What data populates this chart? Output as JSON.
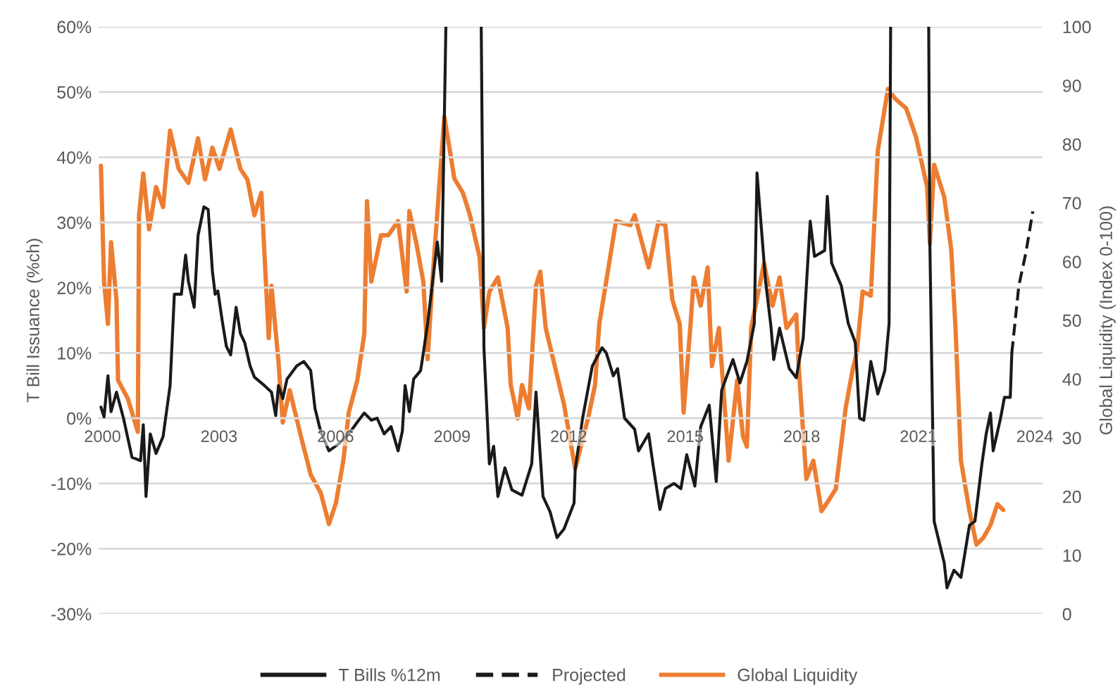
{
  "chart_data": {
    "type": "line",
    "ylabel": "T Bill Issuance (%ch)",
    "y2label": "Global Liquidity (Index 0-100)",
    "xlim": [
      1999.9,
      2024.2
    ],
    "xticks": [
      2000,
      2003,
      2006,
      2009,
      2012,
      2015,
      2018,
      2021,
      2024
    ],
    "ylim": [
      -30,
      60
    ],
    "yticks": [
      {
        "value": -30,
        "label": "-30%"
      },
      {
        "value": -20,
        "label": "-20%"
      },
      {
        "value": -10,
        "label": "-10%"
      },
      {
        "value": 0,
        "label": "0%"
      },
      {
        "value": 10,
        "label": "10%"
      },
      {
        "value": 20,
        "label": "20%"
      },
      {
        "value": 30,
        "label": "30%"
      },
      {
        "value": 40,
        "label": "40%"
      },
      {
        "value": 50,
        "label": "50%"
      },
      {
        "value": 60,
        "label": "60%"
      }
    ],
    "y2lim": [
      0,
      100
    ],
    "y2ticks": [
      0,
      10,
      20,
      30,
      40,
      50,
      60,
      70,
      80,
      90,
      100
    ],
    "grid": "y",
    "legend": "bottom",
    "marker": "none",
    "series": [
      {
        "name": "T Bills %12m",
        "color": "#1a1a1a",
        "line_style": "solid",
        "x": [
          1999.96,
          2000.04,
          2000.14,
          2000.22,
          2000.36,
          2000.54,
          2000.76,
          2000.98,
          2001.05,
          2001.12,
          2001.23,
          2001.38,
          2001.56,
          2001.74,
          2001.85,
          2002.03,
          2002.14,
          2002.21,
          2002.36,
          2002.46,
          2002.61,
          2002.72,
          2002.83,
          2002.9,
          2002.97,
          2003.08,
          2003.19,
          2003.3,
          2003.44,
          2003.55,
          2003.66,
          2003.8,
          2003.91,
          2004.17,
          2004.35,
          2004.46,
          2004.53,
          2004.64,
          2004.75,
          2005.0,
          2005.18,
          2005.36,
          2005.47,
          2005.62,
          2005.83,
          2006.09,
          2006.38,
          2006.56,
          2006.74,
          2006.92,
          2007.07,
          2007.25,
          2007.43,
          2007.61,
          2007.72,
          2007.79,
          2007.9,
          2008.01,
          2008.19,
          2008.26,
          2008.37,
          2008.62,
          2008.73,
          2008.84,
          2009.3,
          2009.75,
          2009.82,
          2009.96,
          2010.07,
          2010.18,
          2010.36,
          2010.54,
          2010.8,
          2011.05,
          2011.16,
          2011.34,
          2011.52,
          2011.7,
          2011.88,
          2012.14,
          2012.17,
          2012.36,
          2012.61,
          2012.86,
          2012.97,
          2013.15,
          2013.26,
          2013.44,
          2013.7,
          2013.8,
          2014.06,
          2014.17,
          2014.35,
          2014.49,
          2014.71,
          2014.89,
          2015.04,
          2015.25,
          2015.4,
          2015.62,
          2015.8,
          2015.94,
          2016.23,
          2016.41,
          2016.59,
          2016.78,
          2016.85,
          2017.07,
          2017.21,
          2017.28,
          2017.43,
          2017.68,
          2017.86,
          2018.04,
          2018.22,
          2018.33,
          2018.59,
          2018.66,
          2018.77,
          2019.02,
          2019.2,
          2019.38,
          2019.49,
          2019.6,
          2019.78,
          2019.96,
          2020.14,
          2020.25,
          2020.29,
          2020.8,
          2021.27,
          2021.3,
          2021.41,
          2021.67,
          2021.74,
          2021.92,
          2022.1,
          2022.32,
          2022.46,
          2022.64,
          2022.75,
          2022.86,
          2022.93,
          2023.12,
          2023.22,
          2023.37,
          2023.41
        ],
        "values": [
          1.7,
          0.2,
          6.5,
          1,
          4,
          0,
          -6,
          -6.5,
          -1,
          -12,
          -2.4,
          -5.4,
          -2.8,
          5,
          19,
          19,
          25,
          21,
          17,
          28,
          32.4,
          32,
          22.5,
          19,
          19.5,
          15,
          11,
          9.7,
          17,
          13,
          11.6,
          8,
          6.3,
          5,
          4,
          0.4,
          5,
          3,
          6,
          8,
          8.7,
          7.3,
          1.5,
          -2.1,
          -5,
          -3.9,
          -2.1,
          -0.6,
          0.8,
          -0.3,
          0,
          -2.4,
          -1.3,
          -5,
          -2,
          5,
          1,
          6,
          7.3,
          10,
          14.5,
          27,
          21,
          60,
          null,
          60,
          10.8,
          -7,
          -4.3,
          -12,
          -7.6,
          -11,
          -11.8,
          -7,
          4,
          -12,
          -14.3,
          -18.3,
          -17,
          -13,
          -7.8,
          0,
          8,
          10.8,
          10,
          6.5,
          7.6,
          0,
          -1.7,
          -5,
          -2.4,
          -7,
          -14,
          -10.8,
          -10,
          -10.8,
          -5.6,
          -10.4,
          -1.3,
          2,
          -9.7,
          4.3,
          9,
          5.4,
          8.7,
          14.5,
          37.6,
          21,
          14,
          9,
          13.8,
          7.6,
          6.2,
          12.3,
          30.2,
          24.8,
          25.7,
          34,
          23.8,
          20.3,
          14.5,
          11.6,
          0,
          -0.3,
          8.7,
          3.7,
          7.3,
          14.5,
          60,
          null,
          60,
          26.8,
          -15.8,
          -22.2,
          -26,
          -23.3,
          -24.4,
          -16.4,
          -15.8,
          -7,
          -2.4,
          0.8,
          -5,
          0,
          3.2,
          3.2,
          10
        ]
      },
      {
        "name": "Projected",
        "color": "#1a1a1a",
        "line_style": "dashed",
        "x": [
          2023.41,
          2023.59,
          2023.77,
          2023.95
        ],
        "values": [
          10,
          20.3,
          25.3,
          31.7
        ]
      },
      {
        "name": "Global Liquidity",
        "color": "#ed7d31",
        "line_style": "solid",
        "axis": "y2",
        "x": [
          1999.96,
          2000.04,
          2000.14,
          2000.22,
          2000.36,
          2000.4,
          2000.65,
          2000.91,
          2000.94,
          2001.05,
          2001.2,
          2001.38,
          2001.56,
          2001.74,
          2001.96,
          2002.21,
          2002.46,
          2002.64,
          2002.83,
          2003.01,
          2003.3,
          2003.55,
          2003.73,
          2003.91,
          2004.09,
          2004.28,
          2004.35,
          2004.53,
          2004.64,
          2004.82,
          2005.11,
          2005.36,
          2005.62,
          2005.83,
          2006.01,
          2006.2,
          2006.34,
          2006.56,
          2006.74,
          2006.81,
          2006.92,
          2007.17,
          2007.36,
          2007.61,
          2007.83,
          2007.9,
          2008.08,
          2008.26,
          2008.37,
          2008.51,
          2008.8,
          2009.06,
          2009.28,
          2009.46,
          2009.71,
          2009.82,
          2009.96,
          2010.18,
          2010.43,
          2010.51,
          2010.69,
          2010.8,
          2010.98,
          2011.16,
          2011.27,
          2011.41,
          2011.88,
          2012.17,
          2012.5,
          2012.68,
          2012.79,
          2013.22,
          2013.59,
          2013.7,
          2014.06,
          2014.31,
          2014.49,
          2014.67,
          2014.86,
          2014.96,
          2015.14,
          2015.22,
          2015.4,
          2015.58,
          2015.69,
          2015.87,
          2016.12,
          2016.34,
          2016.49,
          2016.59,
          2016.7,
          2017.03,
          2017.25,
          2017.43,
          2017.61,
          2017.86,
          2017.93,
          2018.12,
          2018.3,
          2018.51,
          2018.7,
          2018.88,
          2019.13,
          2019.31,
          2019.42,
          2019.57,
          2019.78,
          2019.96,
          2020.22,
          2020.4,
          2020.69,
          2020.94,
          2021.23,
          2021.3,
          2021.41,
          2021.67,
          2021.85,
          2021.96,
          2022.1,
          2022.32,
          2022.5,
          2022.68,
          2022.86,
          2023.04,
          2023.19
        ],
        "values": [
          76.3,
          56.6,
          49.4,
          63.3,
          53.5,
          39.8,
          36.7,
          31,
          67.9,
          75,
          65.5,
          72.7,
          69.3,
          82.3,
          75.8,
          73.4,
          81,
          74,
          79.4,
          75.8,
          82.5,
          75.8,
          74,
          67.9,
          71.7,
          47,
          55.9,
          43,
          32.6,
          38.1,
          30.2,
          23.7,
          20.6,
          15.3,
          18.9,
          26.1,
          34.3,
          39.8,
          47.7,
          70.3,
          56.6,
          64.5,
          64.5,
          66.9,
          54.9,
          68.6,
          63.1,
          56.6,
          43.4,
          58.3,
          84.7,
          74.1,
          71.7,
          67.9,
          60.7,
          48.7,
          54.9,
          57.3,
          48.7,
          39,
          33.3,
          39,
          35,
          55.9,
          58.3,
          48.7,
          35.7,
          24.7,
          33.3,
          39,
          49.4,
          66.9,
          66.2,
          67.9,
          59,
          66.7,
          66.2,
          53.5,
          49.4,
          34.3,
          49.4,
          57.3,
          52.5,
          59,
          42.2,
          48.7,
          26.1,
          39.8,
          30.2,
          28.5,
          48.7,
          59.7,
          52.5,
          57.3,
          48.7,
          51,
          41.5,
          23,
          26.1,
          17.5,
          19.4,
          21.3,
          35,
          41.5,
          44.6,
          54.9,
          54.2,
          78.9,
          89.4,
          87.8,
          86.1,
          81.3,
          72.7,
          63.1,
          76.5,
          71,
          62.1,
          48.7,
          26.1,
          17.5,
          11.8,
          13,
          15.1,
          18.7,
          17.7
        ]
      }
    ]
  }
}
